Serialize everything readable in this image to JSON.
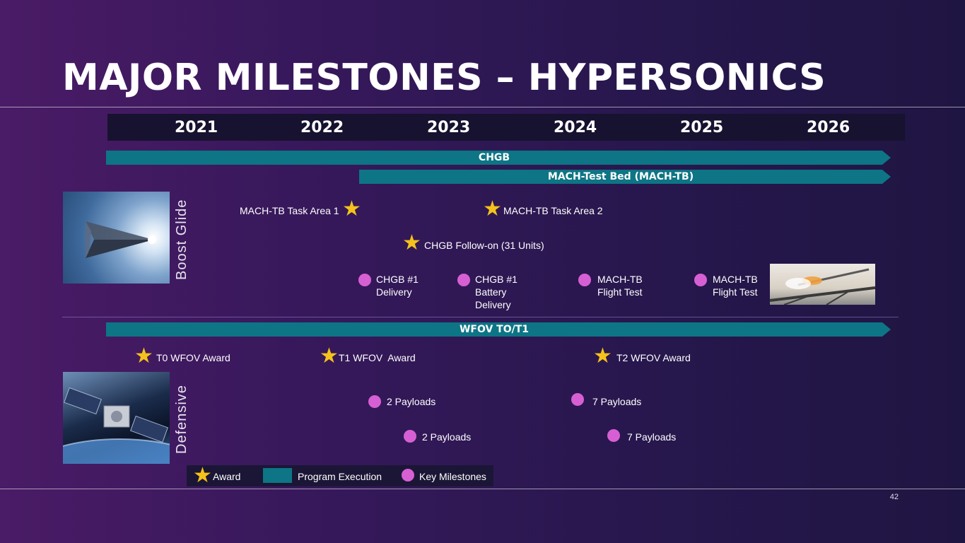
{
  "title": "MAJOR MILESTONES – HYPERSONICS",
  "years": [
    "2021",
    "2022",
    "2023",
    "2024",
    "2025",
    "2026"
  ],
  "bars": {
    "chgb": "CHGB",
    "mach_tb": "MACH-Test Bed (MACH-TB)",
    "wfov": "WFOV TO/T1"
  },
  "sections": {
    "boost_glide": "Boost Glide",
    "defensive": "Defensive"
  },
  "boost_glide": {
    "mach_tb_task_area_1": "MACH-TB Task Area 1",
    "mach_tb_task_area_2": "MACH-TB Task Area 2",
    "chgb_follow_on": "CHGB Follow-on (31 Units)",
    "chgb_delivery": "CHGB #1\nDelivery",
    "chgb_battery_delivery": "CHGB #1\nBattery\nDelivery",
    "mach_tb_flight_test_1": "MACH-TB\nFlight Test",
    "mach_tb_flight_test_2": "MACH-TB\nFlight Test"
  },
  "defensive": {
    "t0_award": "T0 WFOV Award",
    "t1_award": "T1 WFOV  Award",
    "t2_award": "T2 WFOV Award",
    "payloads_2a": "2 Payloads",
    "payloads_2b": "2 Payloads",
    "payloads_7a": "7 Payloads",
    "payloads_7b": "7 Payloads"
  },
  "legend": {
    "award": "Award",
    "program_execution": "Program Execution",
    "key_milestones": "Key Milestones"
  },
  "page_number": "42",
  "colors": {
    "bar": "#0d7585",
    "star": "#f5c21b",
    "milestone_dot": "#d75fd4"
  },
  "icons": {
    "award": "star-icon",
    "milestone": "circle-icon"
  }
}
